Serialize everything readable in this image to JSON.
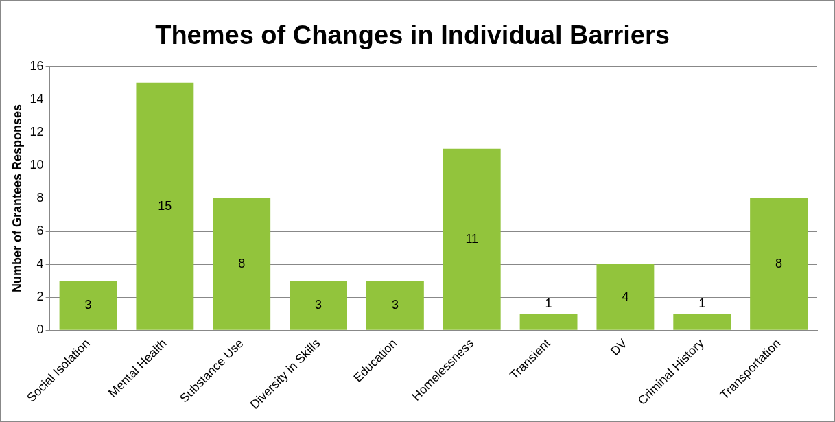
{
  "chart_data": {
    "type": "bar",
    "title": "Themes of Changes in Individual Barriers",
    "ylabel": "Number of Grantees Responses",
    "categories": [
      "Social Isolation",
      "Mental Health",
      "Substance Use",
      "Diversity in Skills",
      "Education",
      "Homelessness",
      "Transient",
      "DV",
      "Criminal History",
      "Transportation"
    ],
    "values": [
      3,
      15,
      8,
      3,
      3,
      11,
      1,
      4,
      1,
      8
    ],
    "color": "#92c43c",
    "ylim": [
      0,
      16
    ],
    "yticks": [
      0,
      2,
      4,
      6,
      8,
      10,
      12,
      14,
      16
    ],
    "grid": "y",
    "data_labels": true
  }
}
